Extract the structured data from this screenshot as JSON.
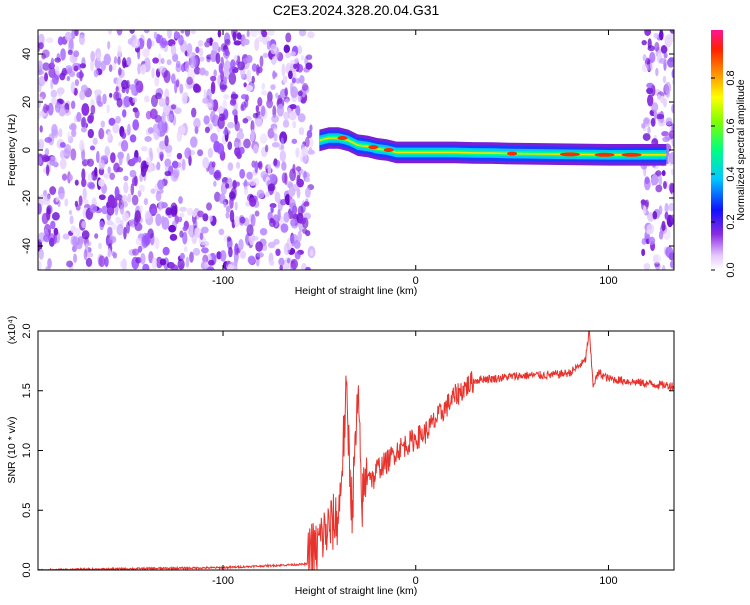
{
  "figure": {
    "title": "C2E3.2024.328.20.04.G31"
  },
  "chart_data": [
    {
      "type": "heatmap",
      "title": "",
      "xlabel": "Height of straight line (km)",
      "ylabel": "Frequency (Hz)",
      "xlim": [
        -196,
        134
      ],
      "ylim": [
        -50,
        50
      ],
      "xticks": [
        -100,
        0,
        100
      ],
      "yticks": [
        -40,
        -20,
        0,
        20,
        40
      ],
      "colorbar": {
        "label": "Normalized spectral amplitude",
        "range": [
          0,
          1
        ],
        "ticks": [
          0.0,
          0.2,
          0.4,
          0.6,
          0.8
        ]
      },
      "noise_region_x": [
        -196,
        -54
      ],
      "signal_ridge": {
        "x": [
          -50,
          -45,
          -40,
          -35,
          -30,
          -25,
          -20,
          -15,
          -10,
          -5,
          0,
          10,
          20,
          30,
          40,
          50,
          60,
          70,
          80,
          90,
          100,
          110,
          120,
          130
        ],
        "y": [
          4,
          5,
          5,
          4,
          2,
          1.5,
          0.5,
          0,
          -1,
          -1,
          -1,
          -1,
          -1,
          -1.2,
          -1.3,
          -1.5,
          -1.6,
          -1.7,
          -1.8,
          -1.9,
          -2,
          -2,
          -2,
          -2
        ]
      },
      "noise_region_x2": [
        118,
        134
      ]
    },
    {
      "type": "line",
      "title": "",
      "xlabel": "Height of straight line (km)",
      "ylabel": "SNR (10 * v/v)",
      "ylabel_multiplier": "(x10⁴)",
      "xlim": [
        -196,
        134
      ],
      "ylim": [
        0,
        2.0
      ],
      "xticks": [
        -100,
        0,
        100
      ],
      "yticks": [
        0.0,
        0.5,
        1.0,
        1.5,
        2.0
      ],
      "series": [
        {
          "color": "#e8322c",
          "x": [
            -196,
            -150,
            -100,
            -70,
            -56,
            -55,
            -52,
            -50,
            -45,
            -40,
            -36,
            -33,
            -30,
            -28,
            -25,
            -22,
            -20,
            -15,
            -10,
            -5,
            0,
            5,
            10,
            15,
            20,
            25,
            30,
            35,
            40,
            50,
            60,
            70,
            80,
            88,
            90,
            92,
            95,
            100,
            110,
            120,
            134
          ],
          "y": [
            0.0,
            0.01,
            0.02,
            0.04,
            0.05,
            0.2,
            0.15,
            0.25,
            0.35,
            0.45,
            1.45,
            0.5,
            1.45,
            0.55,
            0.85,
            0.75,
            0.85,
            0.9,
            1.0,
            1.05,
            1.1,
            1.15,
            1.25,
            1.35,
            1.45,
            1.52,
            1.58,
            1.6,
            1.6,
            1.62,
            1.63,
            1.63,
            1.65,
            1.75,
            2.0,
            1.55,
            1.65,
            1.6,
            1.58,
            1.56,
            1.54
          ]
        }
      ]
    }
  ]
}
